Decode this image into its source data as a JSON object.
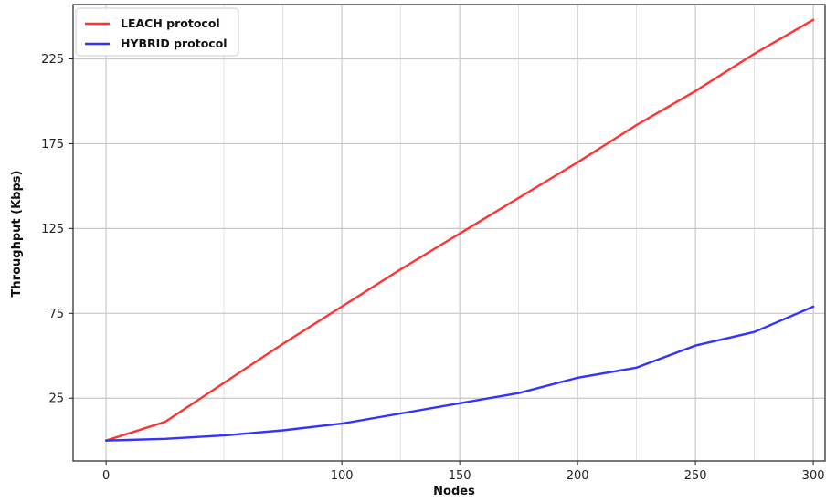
{
  "chart_data": {
    "type": "line",
    "xlabel": "Nodes",
    "ylabel": "Throughput (Kbps)",
    "xlim": [
      -14,
      305
    ],
    "ylim": [
      -12,
      257
    ],
    "xticks": [
      0,
      100,
      150,
      200,
      250,
      300
    ],
    "yticks": [
      25,
      75,
      125,
      175,
      225
    ],
    "minor_x_gridlines": [
      50,
      75,
      125,
      175,
      225,
      275
    ],
    "grid": true,
    "legend_position": "top-left",
    "series": [
      {
        "name": "LEACH protocol",
        "color": "#ff3333",
        "x": [
          0,
          25,
          50,
          75,
          100,
          125,
          150,
          175,
          200,
          225,
          250,
          275,
          300
        ],
        "y": [
          0,
          11,
          34,
          57,
          79,
          101,
          122,
          143,
          164,
          186,
          206,
          228,
          248
        ]
      },
      {
        "name": "HYBRID protocol",
        "color": "#3333ff",
        "x": [
          0,
          25,
          50,
          75,
          100,
          125,
          150,
          175,
          200,
          225,
          250,
          275,
          300
        ],
        "y": [
          0,
          1,
          3,
          6,
          10,
          16,
          22,
          28,
          37,
          43,
          56,
          64,
          79
        ]
      }
    ]
  }
}
